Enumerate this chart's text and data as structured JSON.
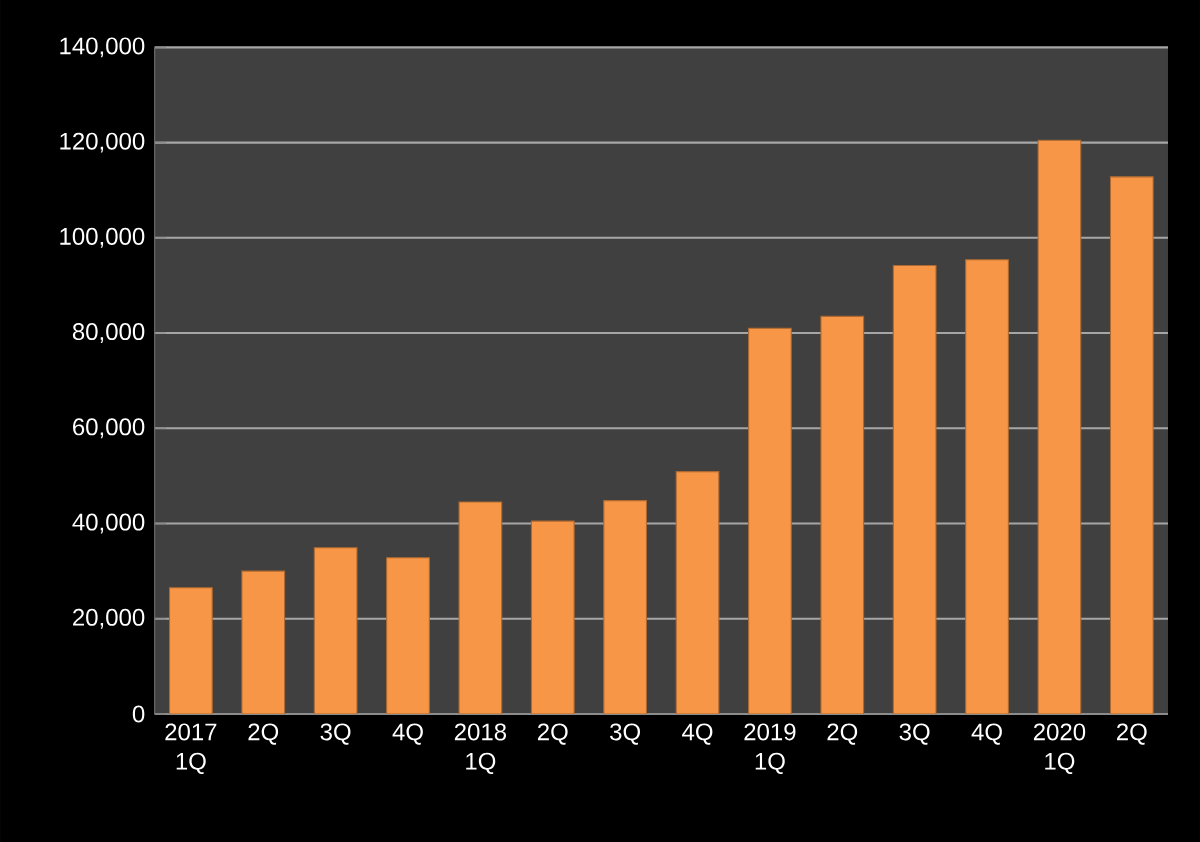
{
  "chart_data": {
    "type": "bar",
    "categories": [
      "2017 1Q",
      "2Q",
      "3Q",
      "4Q",
      "2018 1Q",
      "2Q",
      "3Q",
      "4Q",
      "2019 1Q",
      "2Q",
      "3Q",
      "4Q",
      "2020 1Q",
      "2Q"
    ],
    "values": [
      26500,
      30000,
      34900,
      32800,
      44500,
      40500,
      44800,
      50900,
      81000,
      83500,
      94200,
      95400,
      120500,
      112800
    ],
    "color": "#f79646",
    "ylim": [
      0,
      140000
    ],
    "yticks": [
      {
        "value": 0,
        "label": "0"
      },
      {
        "value": 20000,
        "label": "20,000"
      },
      {
        "value": 40000,
        "label": "40,000"
      },
      {
        "value": 60000,
        "label": "60,000"
      },
      {
        "value": 80000,
        "label": "80,000"
      },
      {
        "value": 100000,
        "label": "100,000"
      },
      {
        "value": 120000,
        "label": "120,000"
      },
      {
        "value": 140000,
        "label": "140,000"
      }
    ],
    "grid": "y"
  }
}
